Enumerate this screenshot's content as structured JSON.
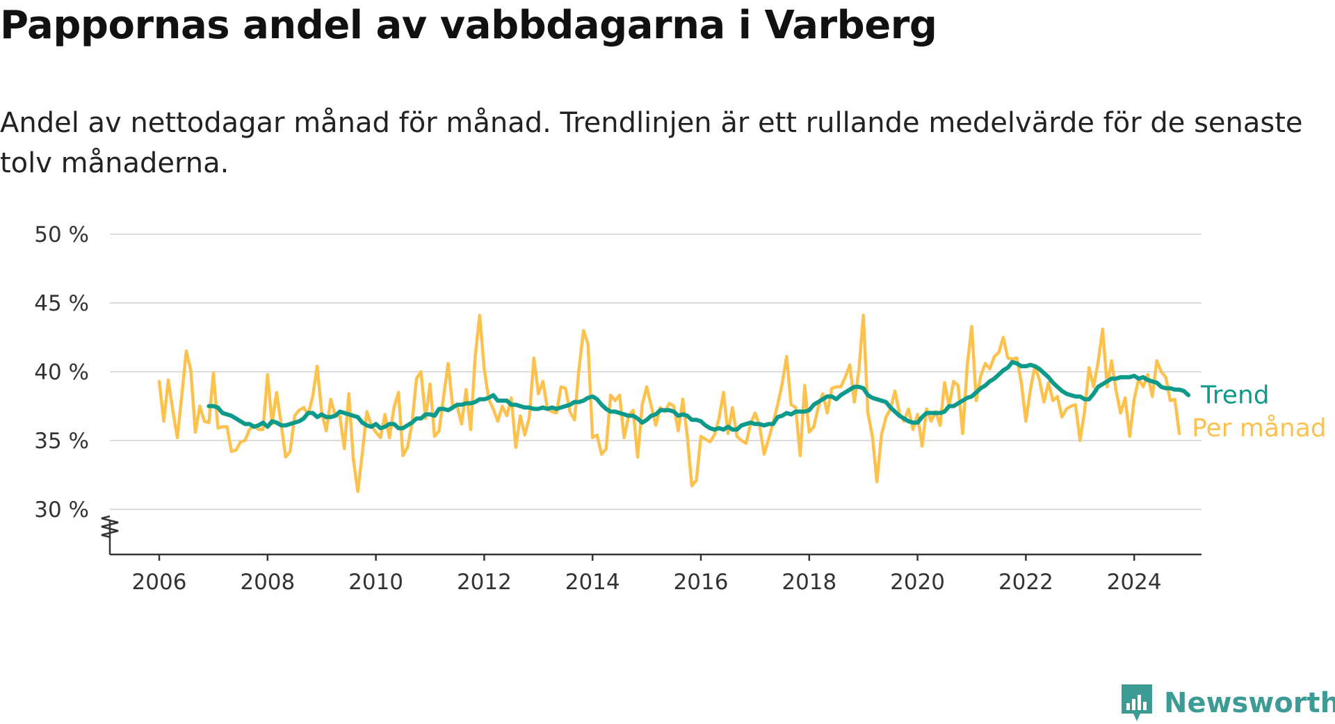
{
  "title": "Pappornas andel av vabbdagarna i Varberg",
  "subtitle": "Andel av nettodagar månad för månad. Trendlinjen är ett rullande medelvärde för de senaste tolv månaderna.",
  "brand": {
    "name": "Newsworthy",
    "icon": "newsworthy-logo-icon",
    "color": "#3d9b95"
  },
  "chart_data": {
    "type": "line",
    "x_start": "2006-01",
    "x_ticks": [
      "2006",
      "2008",
      "2010",
      "2012",
      "2014",
      "2016",
      "2018",
      "2020",
      "2022",
      "2024"
    ],
    "y_ticks": [
      "50 %",
      "45 %",
      "40 %",
      "35 %",
      "30 %"
    ],
    "ylim": [
      30,
      50
    ],
    "y_axis_break": true,
    "grid": "horizontal",
    "legend": "direct labels at line ends",
    "series": [
      {
        "name": "Trend",
        "color": "#0e9a8a",
        "start": "2006-12",
        "values": [
          37.5,
          37.5,
          37.4,
          37.0,
          36.9,
          36.8,
          36.6,
          36.4,
          36.2,
          36.2,
          36.0,
          36.1,
          36.3,
          36.0,
          36.4,
          36.3,
          36.1,
          36.1,
          36.2,
          36.3,
          36.4,
          36.6,
          37.0,
          37.0,
          36.7,
          36.9,
          36.7,
          36.7,
          36.8,
          37.1,
          37.0,
          36.9,
          36.8,
          36.7,
          36.3,
          36.1,
          36.0,
          36.2,
          35.9,
          36.0,
          36.2,
          36.2,
          35.9,
          35.9,
          36.1,
          36.3,
          36.6,
          36.6,
          36.9,
          36.9,
          36.8,
          37.3,
          37.3,
          37.2,
          37.4,
          37.6,
          37.6,
          37.7,
          37.7,
          37.8,
          38.0,
          38.0,
          38.1,
          38.3,
          37.9,
          37.9,
          37.9,
          37.6,
          37.6,
          37.5,
          37.4,
          37.4,
          37.3,
          37.3,
          37.4,
          37.3,
          37.4,
          37.3,
          37.4,
          37.5,
          37.6,
          37.8,
          37.8,
          37.9,
          38.1,
          38.2,
          38.0,
          37.6,
          37.3,
          37.1,
          37.1,
          37.0,
          36.9,
          36.8,
          36.8,
          36.6,
          36.3,
          36.5,
          36.8,
          36.9,
          37.2,
          37.2,
          37.2,
          37.1,
          36.8,
          36.9,
          36.8,
          36.5,
          36.5,
          36.4,
          36.1,
          35.9,
          35.8,
          35.9,
          35.8,
          36.0,
          35.8,
          35.8,
          36.1,
          36.2,
          36.3,
          36.2,
          36.2,
          36.1,
          36.2,
          36.2,
          36.7,
          36.8,
          37.0,
          36.9,
          37.1,
          37.1,
          37.1,
          37.2,
          37.6,
          37.8,
          38.0,
          38.2,
          38.2,
          38.0,
          38.3,
          38.5,
          38.7,
          38.9,
          38.9,
          38.8,
          38.3,
          38.1,
          38.0,
          37.9,
          37.8,
          37.4,
          37.1,
          36.8,
          36.6,
          36.4,
          36.3,
          36.3,
          36.7,
          37.0,
          37.0,
          37.0,
          37.0,
          37.1,
          37.5,
          37.5,
          37.7,
          37.9,
          38.1,
          38.2,
          38.5,
          38.8,
          39.0,
          39.3,
          39.5,
          39.8,
          40.1,
          40.3,
          40.7,
          40.6,
          40.4,
          40.4,
          40.5,
          40.4,
          40.2,
          39.9,
          39.6,
          39.2,
          38.9,
          38.6,
          38.4,
          38.3,
          38.2,
          38.2,
          38.0,
          38.0,
          38.4,
          38.9,
          39.1,
          39.3,
          39.5,
          39.5,
          39.6,
          39.6,
          39.6,
          39.7,
          39.5,
          39.6,
          39.4,
          39.3,
          39.2,
          38.9,
          38.8,
          38.8,
          38.7,
          38.7,
          38.6,
          38.3
        ]
      },
      {
        "name": "Per månad",
        "color": "#fdc24e",
        "start": "2006-01",
        "values": [
          39.3,
          36.4,
          39.4,
          37.2,
          35.2,
          38.3,
          41.5,
          40.1,
          35.6,
          37.5,
          36.4,
          36.3,
          39.9,
          35.9,
          36.0,
          36.0,
          34.2,
          34.3,
          34.9,
          35.0,
          35.8,
          36.1,
          35.8,
          35.8,
          39.8,
          36.2,
          38.5,
          36.2,
          33.8,
          34.2,
          36.8,
          37.2,
          37.4,
          36.9,
          38.2,
          40.4,
          37.0,
          35.7,
          38.0,
          36.8,
          36.8,
          34.4,
          38.4,
          33.7,
          31.3,
          34.1,
          37.1,
          36.1,
          35.6,
          35.2,
          36.9,
          35.2,
          37.4,
          38.5,
          33.9,
          34.5,
          36.2,
          39.5,
          40.0,
          36.6,
          39.1,
          35.3,
          35.7,
          38.2,
          40.6,
          37.5,
          37.5,
          36.2,
          38.7,
          35.8,
          41.1,
          44.1,
          40.2,
          38.0,
          37.3,
          36.4,
          37.5,
          36.8,
          38.1,
          34.5,
          36.8,
          35.4,
          36.7,
          41.0,
          38.4,
          39.3,
          37.3,
          37.1,
          37.0,
          38.9,
          38.8,
          37.1,
          36.5,
          40.2,
          43.0,
          42.0,
          35.2,
          35.4,
          34.0,
          34.4,
          38.3,
          37.9,
          38.3,
          35.2,
          36.8,
          37.2,
          33.8,
          37.6,
          38.9,
          37.5,
          36.1,
          37.4,
          37.1,
          37.7,
          37.5,
          35.7,
          38.0,
          35.3,
          31.7,
          32.1,
          35.3,
          35.1,
          34.9,
          35.4,
          36.6,
          38.5,
          35.5,
          37.4,
          35.3,
          35.0,
          34.8,
          36.2,
          37.0,
          36.1,
          34.0,
          35.1,
          36.3,
          37.6,
          39.1,
          41.1,
          37.6,
          37.4,
          33.9,
          39.0,
          35.6,
          36.0,
          37.4,
          38.4,
          37.0,
          38.8,
          38.9,
          38.9,
          39.6,
          40.5,
          37.8,
          40.1,
          44.1,
          37.0,
          35.3,
          32.0,
          35.4,
          36.7,
          37.3,
          38.6,
          37.0,
          36.4,
          37.3,
          35.8,
          36.9,
          34.6,
          37.3,
          36.4,
          37.1,
          36.1,
          39.2,
          37.5,
          39.3,
          39.0,
          35.5,
          40.4,
          43.3,
          37.9,
          39.7,
          40.6,
          40.2,
          41.1,
          41.4,
          42.5,
          41.0,
          40.9,
          41.0,
          39.2,
          36.4,
          38.7,
          40.4,
          39.4,
          37.8,
          39.2,
          37.9,
          38.2,
          36.7,
          37.3,
          37.5,
          37.6,
          35.0,
          37.1,
          40.3,
          38.9,
          40.7,
          43.1,
          38.9,
          40.8,
          38.6,
          37.0,
          38.1,
          35.3,
          38.0,
          39.5,
          38.9,
          39.8,
          38.2,
          40.8,
          40.0,
          39.6,
          37.9,
          38.0,
          35.5
        ]
      }
    ]
  }
}
